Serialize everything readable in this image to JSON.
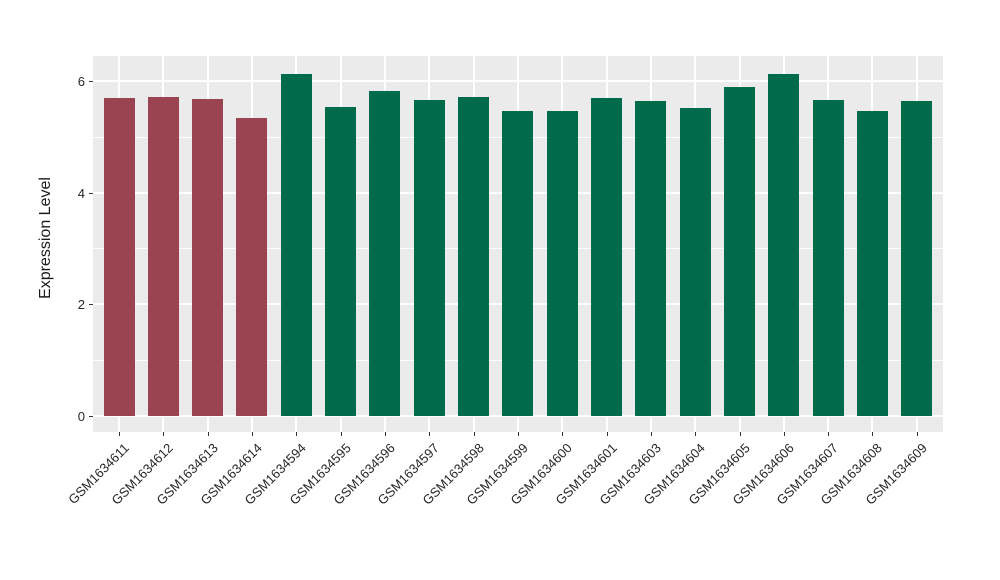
{
  "chart_data": {
    "type": "bar",
    "title": "",
    "xlabel": "",
    "ylabel": "Expression Level",
    "legend": null,
    "grid": true,
    "panel_background": "#EBEBEB",
    "gridline_color": "#ffffff",
    "yticks": [
      0,
      2,
      4,
      6
    ],
    "yticks_minor": [
      1,
      3,
      5
    ],
    "ylim": [
      -0.31,
      6.44
    ],
    "group_colors": {
      "red": "#9A4452",
      "green": "#006B4A"
    },
    "bars": [
      {
        "label": "GSM1634611",
        "value": 5.69,
        "group": "red"
      },
      {
        "label": "GSM1634612",
        "value": 5.71,
        "group": "red"
      },
      {
        "label": "GSM1634613",
        "value": 5.68,
        "group": "red"
      },
      {
        "label": "GSM1634614",
        "value": 5.34,
        "group": "red"
      },
      {
        "label": "GSM1634594",
        "value": 6.13,
        "group": "green"
      },
      {
        "label": "GSM1634595",
        "value": 5.53,
        "group": "green"
      },
      {
        "label": "GSM1634596",
        "value": 5.82,
        "group": "green"
      },
      {
        "label": "GSM1634597",
        "value": 5.65,
        "group": "green"
      },
      {
        "label": "GSM1634598",
        "value": 5.71,
        "group": "green"
      },
      {
        "label": "GSM1634599",
        "value": 5.47,
        "group": "green"
      },
      {
        "label": "GSM1634600",
        "value": 5.47,
        "group": "green"
      },
      {
        "label": "GSM1634601",
        "value": 5.7,
        "group": "green"
      },
      {
        "label": "GSM1634603",
        "value": 5.64,
        "group": "green"
      },
      {
        "label": "GSM1634604",
        "value": 5.51,
        "group": "green"
      },
      {
        "label": "GSM1634605",
        "value": 5.89,
        "group": "green"
      },
      {
        "label": "GSM1634606",
        "value": 6.13,
        "group": "green"
      },
      {
        "label": "GSM1634607",
        "value": 5.65,
        "group": "green"
      },
      {
        "label": "GSM1634608",
        "value": 5.47,
        "group": "green"
      },
      {
        "label": "GSM1634609",
        "value": 5.64,
        "group": "green"
      }
    ]
  }
}
